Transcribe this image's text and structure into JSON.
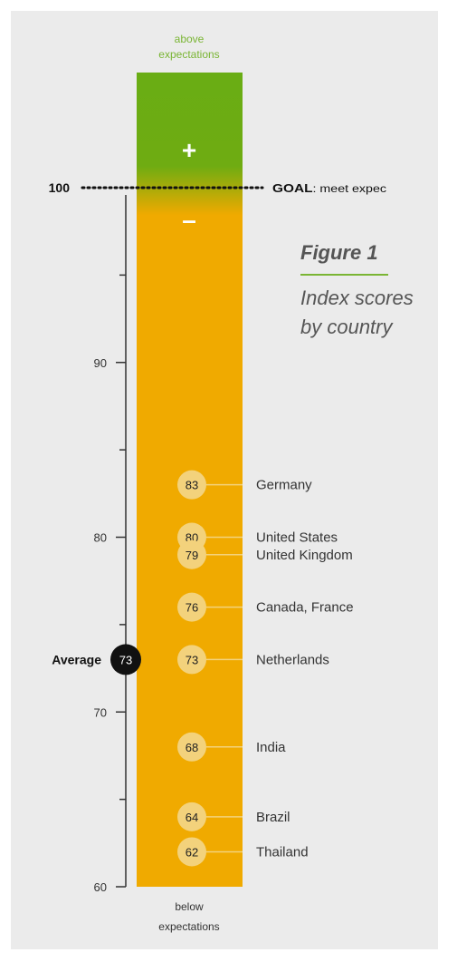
{
  "figure": {
    "label": "Figure 1",
    "title_line1": "Index scores",
    "title_line2": "by country"
  },
  "bar": {
    "top_label_line1": "above",
    "top_label_line2": "expectations",
    "bottom_label_line1": "below",
    "bottom_label_line2": "expectations",
    "plus_symbol": "+",
    "minus_symbol": "–"
  },
  "goal": {
    "value_label": "100",
    "text_bold": "GOAL",
    "text_rest": ": meet expec"
  },
  "average": {
    "label": "Average",
    "value": 73
  },
  "colors": {
    "above": "#69ad14",
    "below": "#f0aa00",
    "marker_fill": "#f3d27c",
    "accent_green": "#7ab534",
    "axis": "#333333"
  },
  "chart_data": {
    "type": "scatter",
    "title": "Index scores by country",
    "ylim": [
      60,
      100
    ],
    "ytick_labels": [
      "60",
      "70",
      "80",
      "90",
      "100"
    ],
    "points": [
      {
        "label": "Germany",
        "value": 83
      },
      {
        "label": "United States",
        "value": 80
      },
      {
        "label": "United Kingdom",
        "value": 79
      },
      {
        "label": "Canada, France",
        "value": 76
      },
      {
        "label": "Netherlands",
        "value": 73
      },
      {
        "label": "India",
        "value": 68
      },
      {
        "label": "Brazil",
        "value": 64
      },
      {
        "label": "Thailand",
        "value": 62
      }
    ]
  }
}
